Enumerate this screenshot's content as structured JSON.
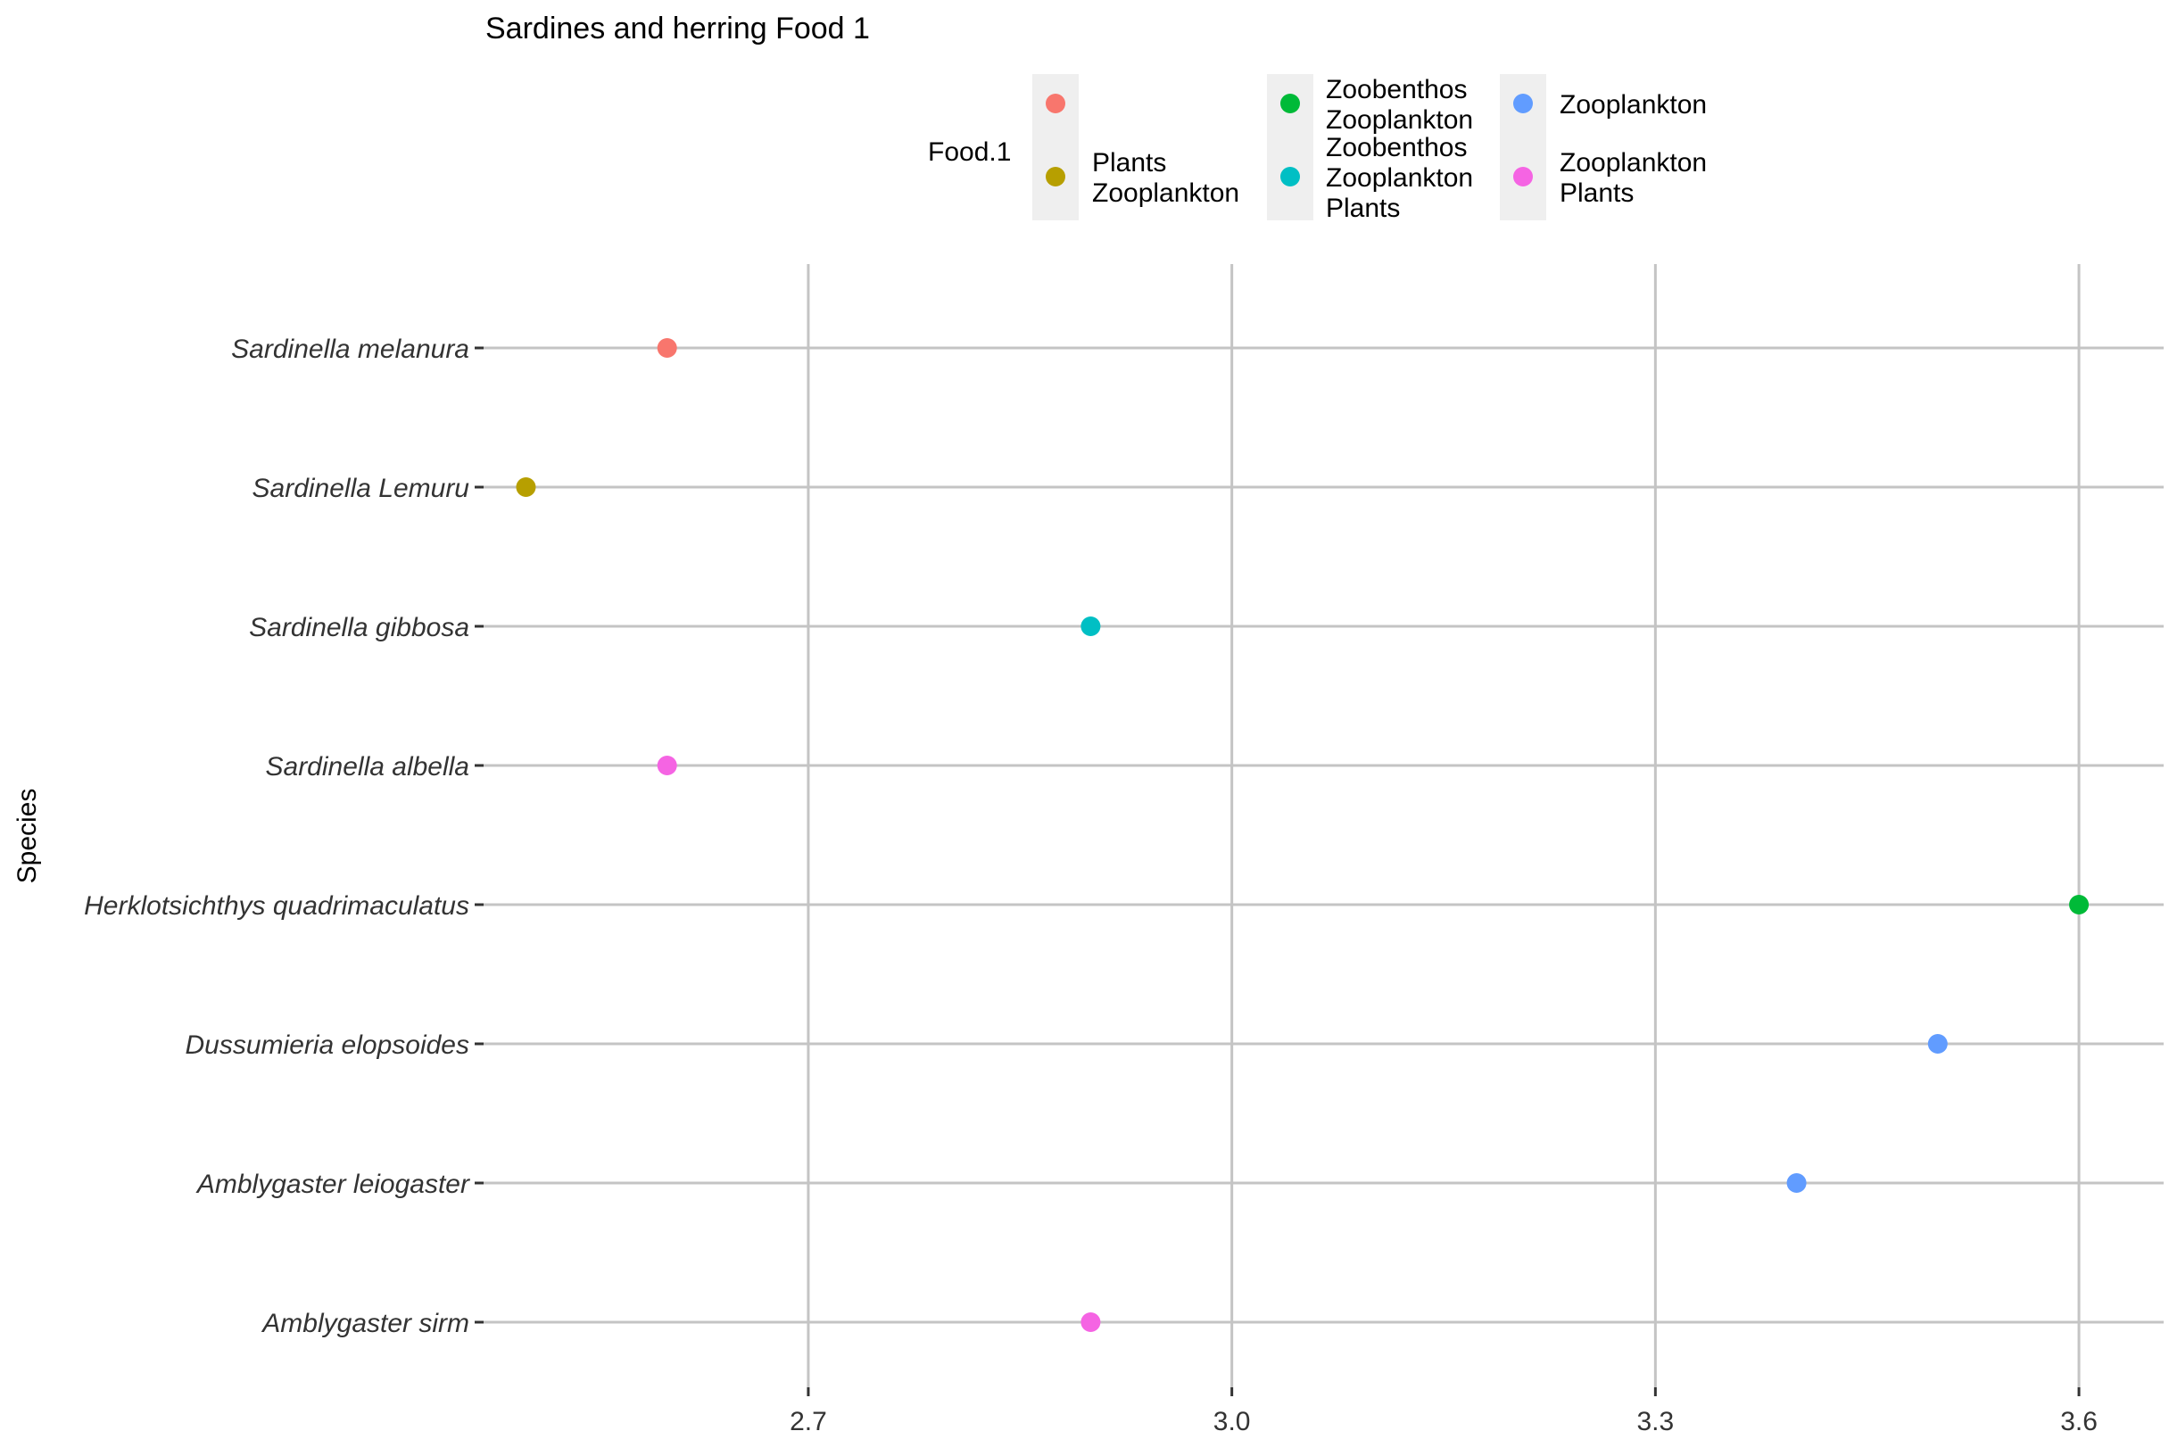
{
  "chart_data": {
    "type": "scatter",
    "title": "Sardines and herring Food 1",
    "xlabel": "",
    "ylabel": "Species",
    "xlim": [
      2.47,
      3.66
    ],
    "xticks": [
      "2.7",
      "3.0",
      "3.3",
      "3.6"
    ],
    "xtick_values": [
      2.7,
      3.0,
      3.3,
      3.6
    ],
    "grid": true,
    "legend": {
      "title": "Food.1",
      "placement": "top",
      "entries": [
        {
          "lines": [
            ""
          ],
          "color": "#F8766D"
        },
        {
          "lines": [
            "Plants",
            "Zooplankton"
          ],
          "color": "#B79F00"
        },
        {
          "lines": [
            "Zoobenthos",
            "Zooplankton"
          ],
          "color": "#00BA38"
        },
        {
          "lines": [
            "Zoobenthos",
            "Zooplankton",
            "Plants"
          ],
          "color": "#00BFC4"
        },
        {
          "lines": [
            "Zooplankton"
          ],
          "color": "#619CFF"
        },
        {
          "lines": [
            "Zooplankton",
            "Plants"
          ],
          "color": "#F564E3"
        }
      ]
    },
    "categories": [
      "Sardinella  melanura",
      "Sardinella  Lemuru",
      "Sardinella  gibbosa",
      "Sardinella  albella",
      "Herklotsichthys  quadrimaculatus",
      "Dussumieria  elopsoides",
      "Amblygaster leiogaster",
      "Amblygaster  sirm"
    ],
    "points": [
      {
        "species": "Sardinella  melanura",
        "x": 2.6,
        "group": 0
      },
      {
        "species": "Sardinella  Lemuru",
        "x": 2.5,
        "group": 1
      },
      {
        "species": "Sardinella  gibbosa",
        "x": 2.9,
        "group": 3
      },
      {
        "species": "Sardinella  albella",
        "x": 2.6,
        "group": 5
      },
      {
        "species": "Herklotsichthys  quadrimaculatus",
        "x": 3.6,
        "group": 2
      },
      {
        "species": "Dussumieria  elopsoides",
        "x": 3.5,
        "group": 4
      },
      {
        "species": "Amblygaster leiogaster",
        "x": 3.4,
        "group": 4
      },
      {
        "species": "Amblygaster  sirm",
        "x": 2.9,
        "group": 5
      }
    ]
  }
}
